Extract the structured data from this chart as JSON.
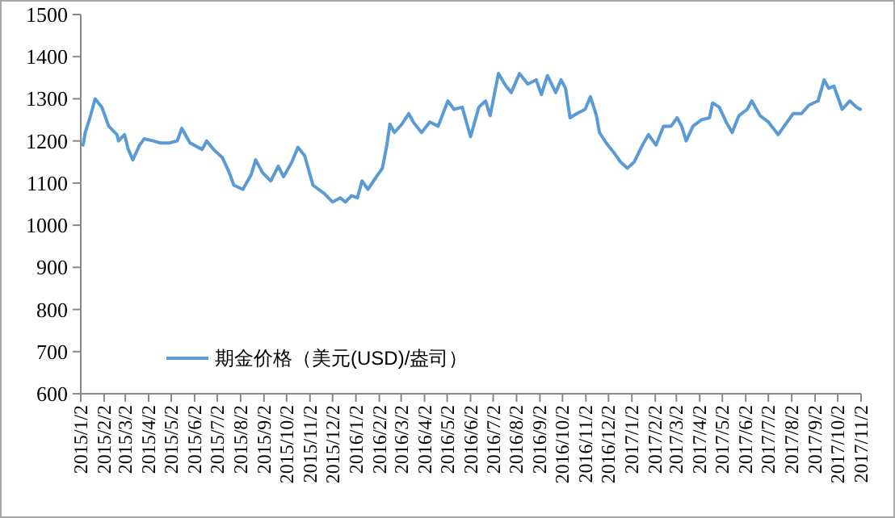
{
  "chart_data": {
    "type": "line",
    "xlim": [
      "2015-01-02",
      "2017-11-02"
    ],
    "xticks": [
      {
        "value": "2015-01-02",
        "label": "2015/1/2"
      },
      {
        "value": "2015-02-02",
        "label": "2015/2/2"
      },
      {
        "value": "2015-03-02",
        "label": "2015/3/2"
      },
      {
        "value": "2015-04-02",
        "label": "2015/4/2"
      },
      {
        "value": "2015-05-02",
        "label": "2015/5/2"
      },
      {
        "value": "2015-06-02",
        "label": "2015/6/2"
      },
      {
        "value": "2015-07-02",
        "label": "2015/7/2"
      },
      {
        "value": "2015-08-02",
        "label": "2015/8/2"
      },
      {
        "value": "2015-09-02",
        "label": "2015/9/2"
      },
      {
        "value": "2015-10-02",
        "label": "2015/10/2"
      },
      {
        "value": "2015-11-02",
        "label": "2015/11/2"
      },
      {
        "value": "2015-12-02",
        "label": "2015/12/2"
      },
      {
        "value": "2016-01-02",
        "label": "2016/1/2"
      },
      {
        "value": "2016-02-02",
        "label": "2016/2/2"
      },
      {
        "value": "2016-03-02",
        "label": "2016/3/2"
      },
      {
        "value": "2016-04-02",
        "label": "2016/4/2"
      },
      {
        "value": "2016-05-02",
        "label": "2016/5/2"
      },
      {
        "value": "2016-06-02",
        "label": "2016/6/2"
      },
      {
        "value": "2016-07-02",
        "label": "2016/7/2"
      },
      {
        "value": "2016-08-02",
        "label": "2016/8/2"
      },
      {
        "value": "2016-09-02",
        "label": "2016/9/2"
      },
      {
        "value": "2016-10-02",
        "label": "2016/10/2"
      },
      {
        "value": "2016-11-02",
        "label": "2016/11/2"
      },
      {
        "value": "2016-12-02",
        "label": "2016/12/2"
      },
      {
        "value": "2017-01-02",
        "label": "2017/1/2"
      },
      {
        "value": "2017-02-02",
        "label": "2017/2/2"
      },
      {
        "value": "2017-03-02",
        "label": "2017/3/2"
      },
      {
        "value": "2017-04-02",
        "label": "2017/4/2"
      },
      {
        "value": "2017-05-02",
        "label": "2017/5/2"
      },
      {
        "value": "2017-06-02",
        "label": "2017/6/2"
      },
      {
        "value": "2017-07-02",
        "label": "2017/7/2"
      },
      {
        "value": "2017-08-02",
        "label": "2017/8/2"
      },
      {
        "value": "2017-09-02",
        "label": "2017/9/2"
      },
      {
        "value": "2017-10-02",
        "label": "2017/10/2"
      },
      {
        "value": "2017-11-02",
        "label": "2017/11/2"
      }
    ],
    "ylim": [
      600,
      1500
    ],
    "yticks": [
      600,
      700,
      800,
      900,
      1000,
      1100,
      1200,
      1300,
      1400,
      1500
    ],
    "grid": false,
    "legend": "bottom left",
    "series": [
      {
        "name": "期金价格（美元(USD)/盎司）",
        "color": "#5b9bd5",
        "x": [
          "2015-01-05",
          "2015-01-08",
          "2015-01-15",
          "2015-01-21",
          "2015-01-30",
          "2015-02-08",
          "2015-02-19",
          "2015-02-21",
          "2015-03-01",
          "2015-03-06",
          "2015-03-12",
          "2015-03-21",
          "2015-03-27",
          "2015-04-08",
          "2015-04-18",
          "2015-04-29",
          "2015-05-10",
          "2015-05-16",
          "2015-05-27",
          "2015-06-12",
          "2015-06-18",
          "2015-06-27",
          "2015-07-09",
          "2015-07-18",
          "2015-07-24",
          "2015-08-05",
          "2015-08-16",
          "2015-08-22",
          "2015-08-31",
          "2015-09-11",
          "2015-09-21",
          "2015-09-28",
          "2015-10-09",
          "2015-10-17",
          "2015-10-26",
          "2015-11-06",
          "2015-11-21",
          "2015-12-02",
          "2015-12-12",
          "2015-12-19",
          "2015-12-27",
          "2016-01-04",
          "2016-01-10",
          "2016-01-18",
          "2016-01-29",
          "2016-02-06",
          "2016-02-12",
          "2016-02-16",
          "2016-02-22",
          "2016-03-03",
          "2016-03-12",
          "2016-03-18",
          "2016-03-29",
          "2016-04-09",
          "2016-04-20",
          "2016-05-03",
          "2016-05-11",
          "2016-05-22",
          "2016-06-02",
          "2016-06-13",
          "2016-06-22",
          "2016-06-28",
          "2016-07-09",
          "2016-07-19",
          "2016-07-26",
          "2016-08-06",
          "2016-08-17",
          "2016-08-28",
          "2016-09-04",
          "2016-09-12",
          "2016-09-23",
          "2016-09-30",
          "2016-10-06",
          "2016-10-12",
          "2016-10-21",
          "2016-11-01",
          "2016-11-08",
          "2016-11-16",
          "2016-11-20",
          "2016-11-29",
          "2016-12-10",
          "2016-12-18",
          "2016-12-27",
          "2017-01-05",
          "2017-01-16",
          "2017-01-24",
          "2017-02-03",
          "2017-02-13",
          "2017-02-23",
          "2017-03-03",
          "2017-03-09",
          "2017-03-15",
          "2017-03-24",
          "2017-04-04",
          "2017-04-15",
          "2017-04-19",
          "2017-04-28",
          "2017-05-07",
          "2017-05-15",
          "2017-05-24",
          "2017-06-04",
          "2017-06-10",
          "2017-06-21",
          "2017-07-02",
          "2017-07-15",
          "2017-07-23",
          "2017-08-04",
          "2017-08-15",
          "2017-08-25",
          "2017-09-06",
          "2017-09-14",
          "2017-09-20",
          "2017-09-27",
          "2017-10-08",
          "2017-10-18",
          "2017-10-27",
          "2017-11-01"
        ],
        "values": [
          1190,
          1220,
          1260,
          1300,
          1280,
          1235,
          1215,
          1200,
          1215,
          1180,
          1155,
          1190,
          1205,
          1200,
          1195,
          1195,
          1200,
          1230,
          1195,
          1180,
          1200,
          1180,
          1160,
          1125,
          1095,
          1085,
          1120,
          1155,
          1125,
          1105,
          1140,
          1115,
          1150,
          1185,
          1165,
          1095,
          1075,
          1055,
          1065,
          1055,
          1070,
          1065,
          1105,
          1085,
          1115,
          1135,
          1190,
          1240,
          1220,
          1240,
          1265,
          1245,
          1220,
          1245,
          1235,
          1295,
          1275,
          1280,
          1210,
          1280,
          1295,
          1260,
          1360,
          1330,
          1315,
          1360,
          1335,
          1345,
          1310,
          1355,
          1315,
          1345,
          1325,
          1255,
          1265,
          1275,
          1305,
          1260,
          1220,
          1195,
          1170,
          1150,
          1135,
          1150,
          1190,
          1215,
          1190,
          1235,
          1235,
          1255,
          1235,
          1200,
          1235,
          1250,
          1255,
          1290,
          1280,
          1245,
          1220,
          1260,
          1275,
          1295,
          1260,
          1245,
          1215,
          1235,
          1265,
          1265,
          1285,
          1295,
          1345,
          1325,
          1330,
          1275,
          1295,
          1280,
          1275
        ]
      }
    ]
  }
}
